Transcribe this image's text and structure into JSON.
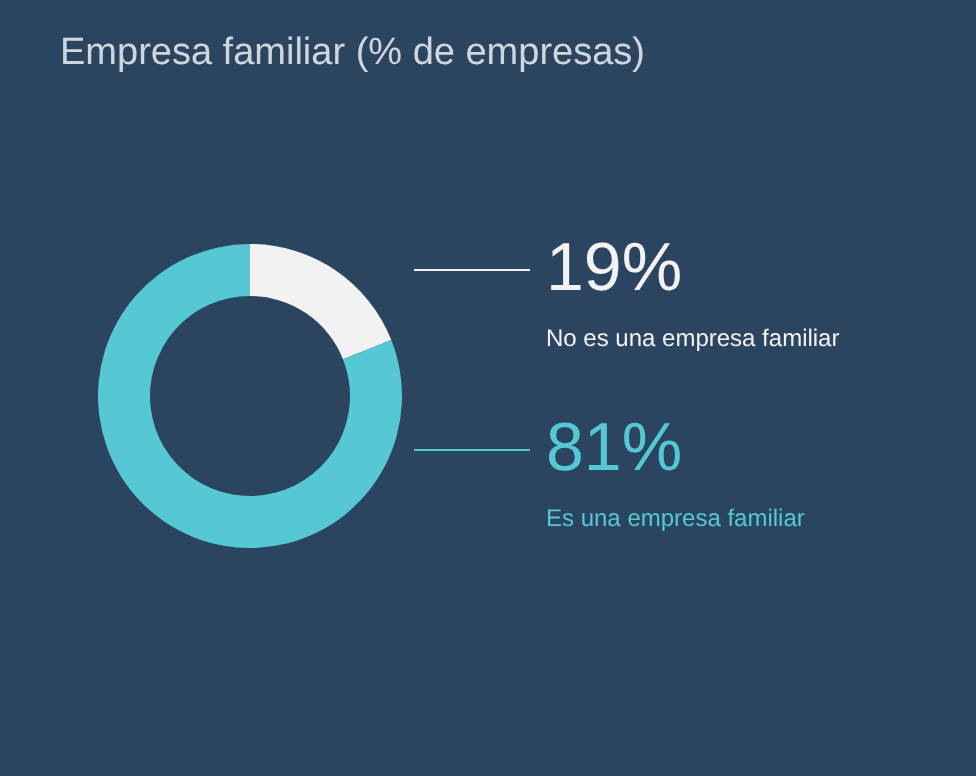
{
  "chart_data": {
    "type": "donut",
    "title": "Empresa familiar (% de empresas)",
    "categories": [
      "No es una empresa familiar",
      "Es una empresa familiar"
    ],
    "values": [
      19,
      81
    ],
    "colors": [
      "#f2f2f2",
      "#56c8d4"
    ],
    "value_labels": [
      "19%",
      "81%"
    ],
    "legend": false
  }
}
